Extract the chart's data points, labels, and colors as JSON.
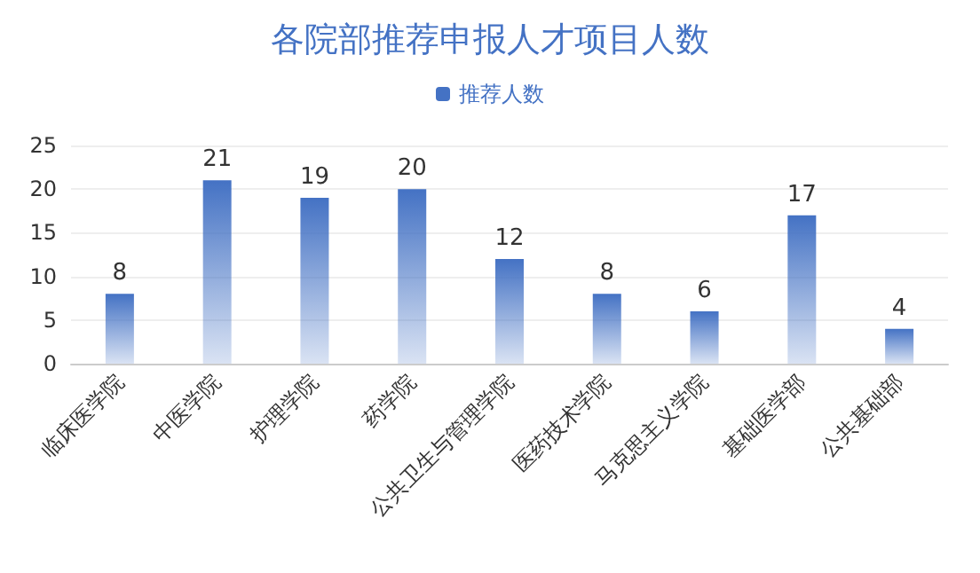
{
  "chart_data": {
    "type": "bar",
    "title": "各院部推荐申报人才项目人数",
    "categories": [
      "临床医学院",
      "中医学院",
      "护理学院",
      "药学院",
      "公共卫生与管理学院",
      "医药技术学院",
      "马克思主义学院",
      "基础医学部",
      "公共基础部"
    ],
    "series": [
      {
        "name": "推荐人数",
        "color": "#4472c4",
        "values": [
          8,
          21,
          19,
          20,
          12,
          8,
          6,
          17,
          4
        ]
      }
    ],
    "ylim": [
      0,
      25
    ],
    "yticks": [
      0,
      5,
      10,
      15,
      20,
      25
    ],
    "grid": "y",
    "legend": "top",
    "data_labels": true
  }
}
